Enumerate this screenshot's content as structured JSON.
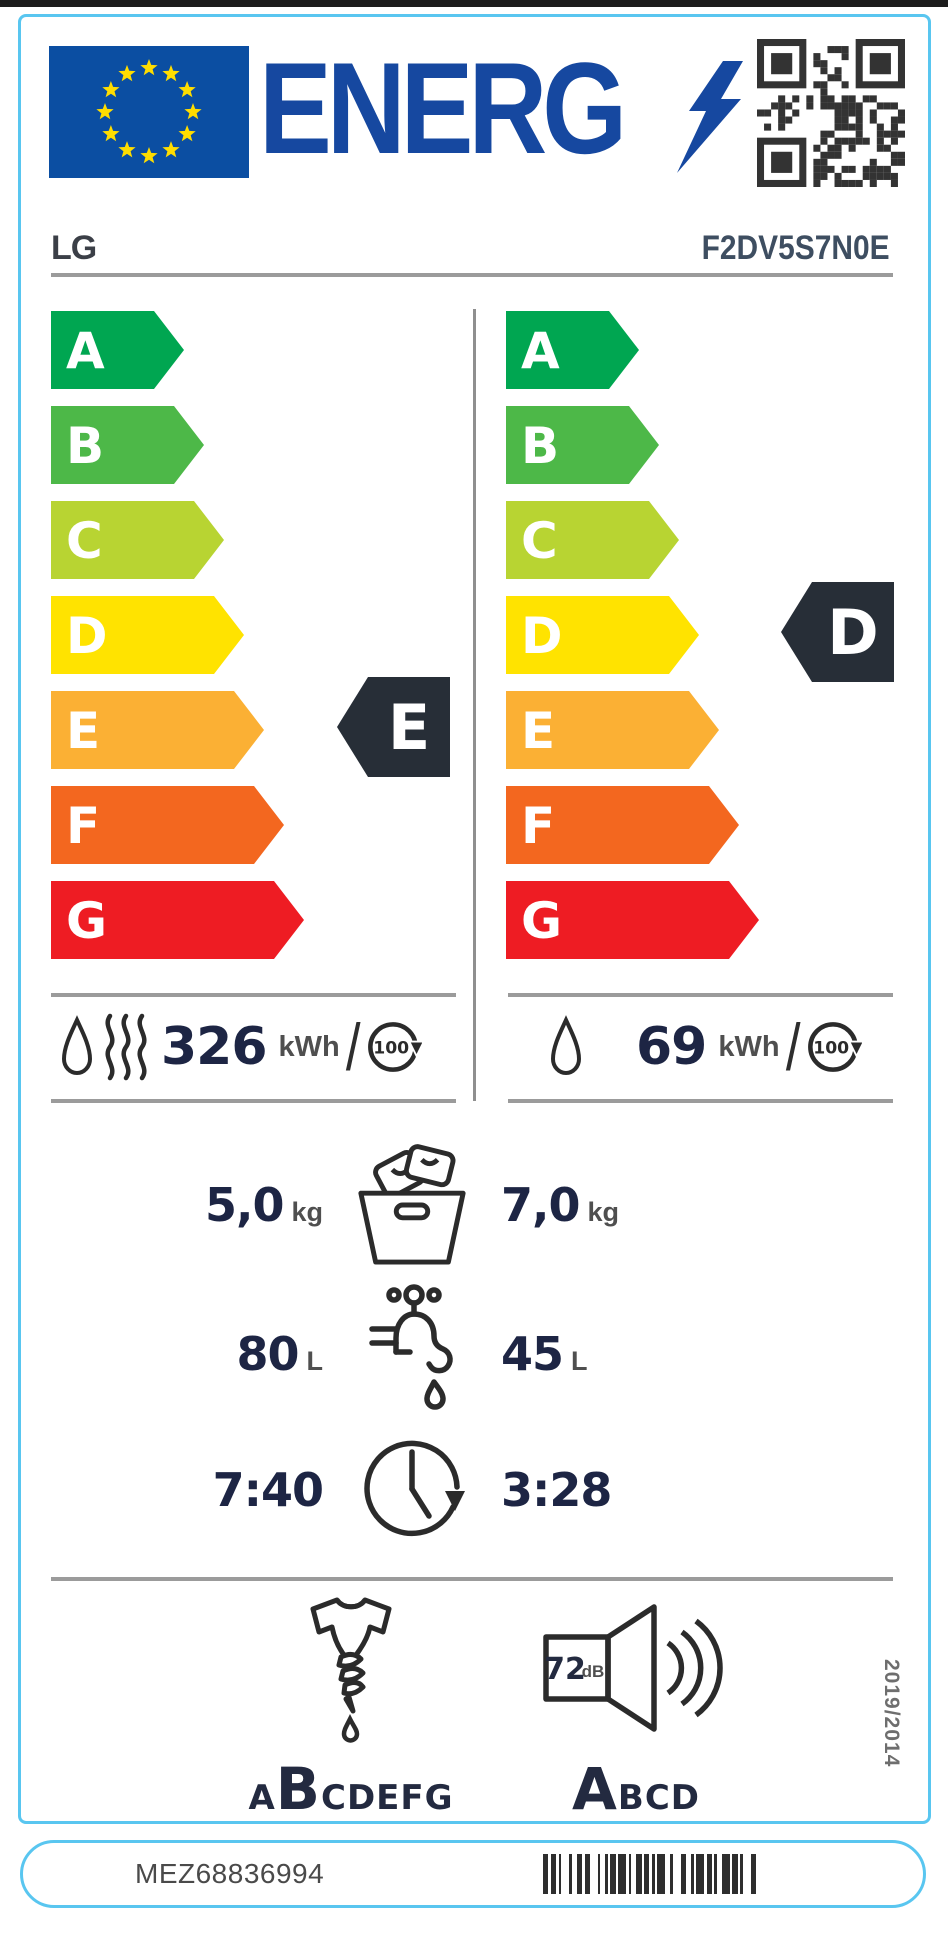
{
  "header": {
    "logo_text": "ENERG"
  },
  "product": {
    "brand": "LG",
    "model": "F2DV5S7N0E"
  },
  "scale": {
    "grades": [
      "A",
      "B",
      "C",
      "D",
      "E",
      "F",
      "G"
    ],
    "colors": [
      "#00a651",
      "#4db848",
      "#b8d432",
      "#ffe300",
      "#fbb034",
      "#f3671f",
      "#ee1c23"
    ]
  },
  "wash_dry_cycle": {
    "grade": "E",
    "energy": "326",
    "unit": "kWh",
    "slash": "/",
    "per_cycles": "100"
  },
  "wash_cycle": {
    "grade": "D",
    "energy": "69",
    "unit": "kWh",
    "slash": "/",
    "per_cycles": "100"
  },
  "capacity": {
    "wash_dry": "5,0",
    "wash": "7,0",
    "unit": "kg"
  },
  "water": {
    "wash_dry": "80",
    "wash": "45",
    "unit": "L"
  },
  "duration": {
    "wash_dry": "7:40",
    "wash": "3:28"
  },
  "spin_class": {
    "letters": [
      "A",
      "B",
      "C",
      "D",
      "E",
      "F",
      "G"
    ],
    "active": "B"
  },
  "noise": {
    "value": "72",
    "unit": "dB",
    "letters": [
      "A",
      "B",
      "C",
      "D"
    ],
    "active": "A"
  },
  "regulation": "2019/2014",
  "footer": {
    "code": "MEZ68836994"
  },
  "colors": {
    "border": "#59c6f0",
    "eu_blue": "#0b4ea2",
    "star_yellow": "#ffdd00",
    "logo_blue": "#1648a0",
    "badge_dark": "#272e37",
    "value_dark": "#1d2544",
    "unit_gray": "#4f4f4f",
    "rule_gray": "#9b9b9b",
    "icon_dark": "#2b2b2b"
  }
}
